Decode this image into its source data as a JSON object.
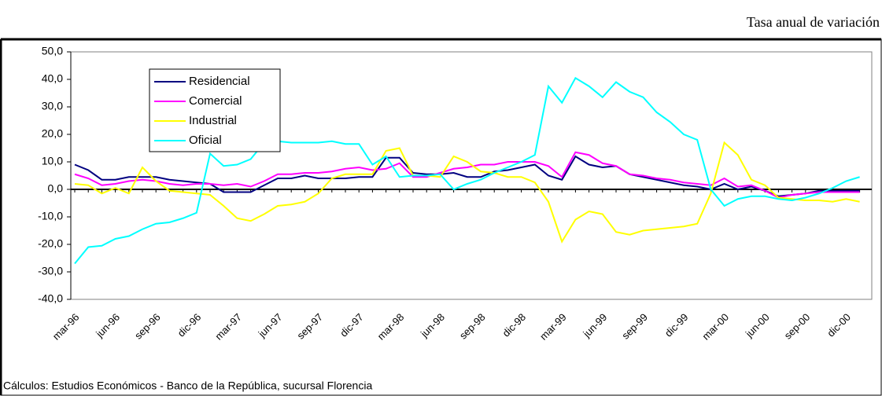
{
  "chart_data": {
    "type": "line",
    "title": "Tasa anual de variación",
    "source": "Cálculos:  Estudios Económicos - Banco de la República, sucursal Florencia",
    "categories": [
      "mar-96",
      null,
      null,
      "jun-96",
      null,
      null,
      "sep-96",
      null,
      null,
      "dic-96",
      null,
      null,
      "mar-97",
      null,
      null,
      "jun-97",
      null,
      null,
      "sep-97",
      null,
      null,
      "dic-97",
      null,
      null,
      "mar-98",
      null,
      null,
      "jun-98",
      null,
      null,
      "sep-98",
      null,
      null,
      "dic-98",
      null,
      null,
      "mar-99",
      null,
      null,
      "jun-99",
      null,
      null,
      "sep-99",
      null,
      null,
      "dic-99",
      null,
      null,
      "mar-00",
      null,
      null,
      "jun-00",
      null,
      null,
      "sep-00",
      null,
      null,
      "dic-00",
      null
    ],
    "series": [
      {
        "name": "Residencial",
        "color": "#000080",
        "values": [
          9,
          7,
          3.5,
          3.5,
          4.5,
          4.5,
          4.5,
          3.5,
          3,
          2.5,
          2,
          -1,
          -1,
          -1,
          1.5,
          4,
          4,
          5,
          4,
          4,
          4,
          4.5,
          4.5,
          11.5,
          11.5,
          6,
          5.5,
          5.5,
          6,
          4.5,
          4.5,
          6.5,
          7,
          8,
          9,
          5,
          3.5,
          12,
          9,
          8,
          8.5,
          5.5,
          4.5,
          3.5,
          2.5,
          1.5,
          1,
          0,
          2,
          0,
          1,
          -0.5,
          -2.5,
          -2,
          -1.5,
          -0.5,
          -0.5,
          -0.5,
          -0.5
        ]
      },
      {
        "name": "Comercial",
        "color": "#ff00ff",
        "values": [
          5.5,
          4,
          1.5,
          2,
          3,
          3.5,
          3,
          2,
          1.5,
          2,
          2,
          1.5,
          2,
          1,
          3,
          5.5,
          5.5,
          6,
          6,
          6.5,
          7.5,
          8,
          7,
          7.5,
          9.5,
          4.5,
          4.5,
          6,
          7.5,
          8,
          9,
          9,
          10,
          10,
          10,
          8.5,
          4.5,
          13.5,
          12.5,
          9.5,
          8.5,
          5.5,
          5,
          4,
          3.5,
          2.5,
          2,
          1.5,
          4,
          1,
          1.5,
          -0.5,
          -3,
          -2,
          -1.5,
          -1,
          -1,
          -1,
          -1
        ]
      },
      {
        "name": "Industrial",
        "color": "#ffff00",
        "values": [
          2,
          1.5,
          -1.5,
          0.5,
          -1.5,
          8,
          3,
          -0.5,
          -1,
          -1.5,
          -2,
          -6,
          -10.5,
          -11.5,
          -9,
          -6,
          -5.5,
          -4.5,
          -1.5,
          4,
          5.5,
          5.5,
          5.5,
          14,
          15,
          5,
          5,
          4.5,
          12,
          10,
          6.5,
          6,
          4.5,
          4.5,
          2.5,
          -4.5,
          -19,
          -11,
          -8,
          -9,
          -15.5,
          -16.5,
          -15,
          -14.5,
          -14,
          -13.5,
          -12.5,
          -1.5,
          17,
          12.5,
          3.5,
          1.5,
          -3,
          -3.5,
          -4,
          -4,
          -4.5,
          -3.5,
          -4.5
        ]
      },
      {
        "name": "Oficial",
        "color": "#00ffff",
        "values": [
          -27,
          -21,
          -20.5,
          -18,
          -17,
          -14.5,
          -12.5,
          -12,
          -10.5,
          -8.5,
          13,
          8.5,
          9,
          11,
          17,
          17.5,
          17,
          17,
          17,
          17.5,
          16.5,
          16.5,
          9,
          12,
          4.5,
          5,
          5,
          5.5,
          0,
          2,
          3.5,
          6,
          8,
          10,
          12.5,
          37.5,
          31.5,
          40.5,
          37.5,
          33.5,
          39,
          35.5,
          33.5,
          28,
          24.5,
          20,
          18,
          0,
          -6,
          -3.5,
          -2.5,
          -2.5,
          -3.5,
          -4,
          -3,
          -1.5,
          0.5,
          3,
          4.5
        ]
      }
    ],
    "ylim": [
      -40,
      50
    ],
    "yticks": [
      {
        "value": -40,
        "label": "-40,0"
      },
      {
        "value": -30,
        "label": "-30,0"
      },
      {
        "value": -20,
        "label": "-20,0"
      },
      {
        "value": -10,
        "label": "-10,0"
      },
      {
        "value": 0,
        "label": "0,0"
      },
      {
        "value": 10,
        "label": "10,0"
      },
      {
        "value": 20,
        "label": "20,0"
      },
      {
        "value": 30,
        "label": "30,0"
      },
      {
        "value": 40,
        "label": "40,0"
      },
      {
        "value": 50,
        "label": "50,0"
      }
    ],
    "grid": false,
    "legend": "top-left"
  }
}
